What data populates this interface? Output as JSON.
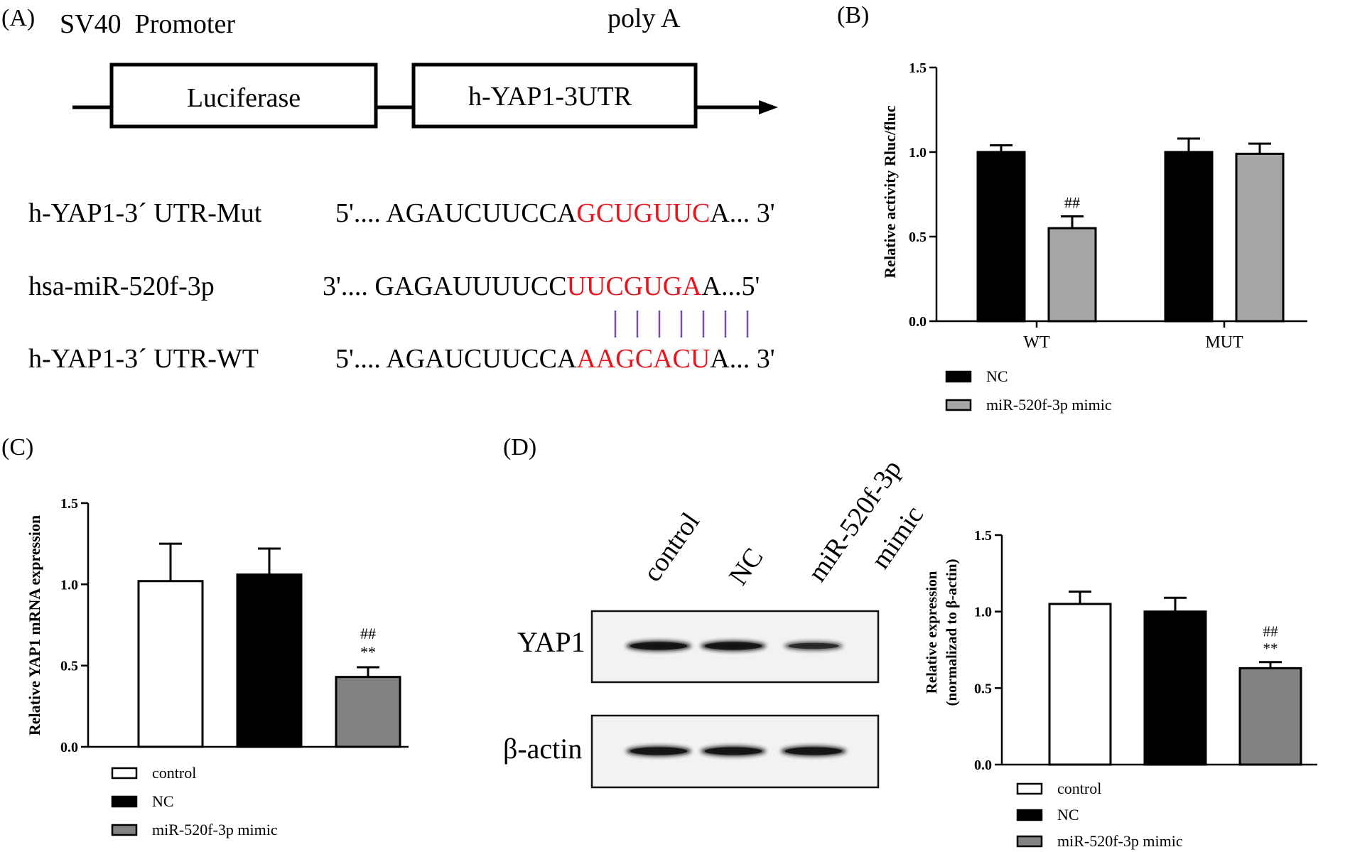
{
  "panel_labels": {
    "a": "(A)",
    "b": "(B)",
    "c": "(C)",
    "d": "(D)"
  },
  "construct": {
    "promoter": "SV40  Promoter",
    "polya": "poly A",
    "box1": "Luciferase",
    "box2": "h-YAP1-3UTR"
  },
  "sequences": [
    {
      "name": "h-YAP1-3´ UTR-Mut",
      "prefix": "5'.... AGAUCUUCCA",
      "highlight": "GCUGUUC",
      "suffix": "A... 3'"
    },
    {
      "name": "hsa-miR-520f-3p",
      "prefix": "3'.... GAGAUUUUCC",
      "highlight": "UUCGUGA",
      "suffix": "A...5'"
    },
    {
      "name": "h-YAP1-3´ UTR-WT",
      "prefix": "5'.... AGAUCUUCCA",
      "highlight": "AAGCACU",
      "suffix": "A... 3'"
    }
  ],
  "pairing_marks": 7,
  "blot": {
    "lanes": [
      "control",
      "NC",
      "miR-520f-3p mimic"
    ],
    "lane3_line1": "miR-520f-3p",
    "lane3_line2": "mimic",
    "rows": [
      "YAP1",
      "β-actin"
    ],
    "yap1_intensity": [
      1.0,
      1.0,
      0.6
    ],
    "actin_intensity": [
      1.0,
      1.0,
      1.0
    ]
  },
  "colors": {
    "highlight": "#e8141b",
    "pairing": "#7a4fa0",
    "nc": "#000000",
    "mimic_b": "#a6a6a8",
    "mimic_cd": "#828282",
    "control": "#ffffff"
  },
  "chart_data": [
    {
      "id": "B",
      "type": "bar",
      "categories": [
        "WT",
        "MUT"
      ],
      "series": [
        {
          "name": "NC",
          "values": [
            1.0,
            1.0
          ],
          "errors": [
            0.04,
            0.08
          ]
        },
        {
          "name": "miR-520f-3p mimic",
          "values": [
            0.55,
            0.99
          ],
          "errors": [
            0.07,
            0.06
          ]
        }
      ],
      "annotations": [
        {
          "series": 1,
          "category": 0,
          "text": "##"
        }
      ],
      "ylabel": "Relative activity Rluc/fluc",
      "yticks": [
        "0.0",
        "0.5",
        "1.0",
        "1.5"
      ],
      "ylim": [
        0,
        1.5
      ],
      "legend": "bottom-left"
    },
    {
      "id": "C",
      "type": "bar",
      "categories": [
        "control",
        "NC",
        "miR-520f-3p mimic"
      ],
      "values": [
        1.02,
        1.06,
        0.43
      ],
      "errors": [
        0.23,
        0.16,
        0.06
      ],
      "annotations": [
        {
          "bar": 2,
          "lines": [
            "##",
            "**"
          ]
        }
      ],
      "ylabel": "Relative YAP1 mRNA expression",
      "yticks": [
        "0.0",
        "0.5",
        "1.0",
        "1.5"
      ],
      "ylim": [
        0,
        1.5
      ],
      "legend": "bottom-left"
    },
    {
      "id": "D",
      "type": "bar",
      "categories": [
        "control",
        "NC",
        "miR-520f-3p mimic"
      ],
      "values": [
        1.05,
        1.0,
        0.63
      ],
      "errors": [
        0.08,
        0.09,
        0.04
      ],
      "annotations": [
        {
          "bar": 2,
          "lines": [
            "##",
            "**"
          ]
        }
      ],
      "ylabel_line1": "Relative expression",
      "ylabel_line2": "(normalizad to β-actin)",
      "yticks": [
        "0.0",
        "0.5",
        "1.0",
        "1.5"
      ],
      "ylim": [
        0,
        1.5
      ],
      "legend": "bottom-left"
    }
  ]
}
